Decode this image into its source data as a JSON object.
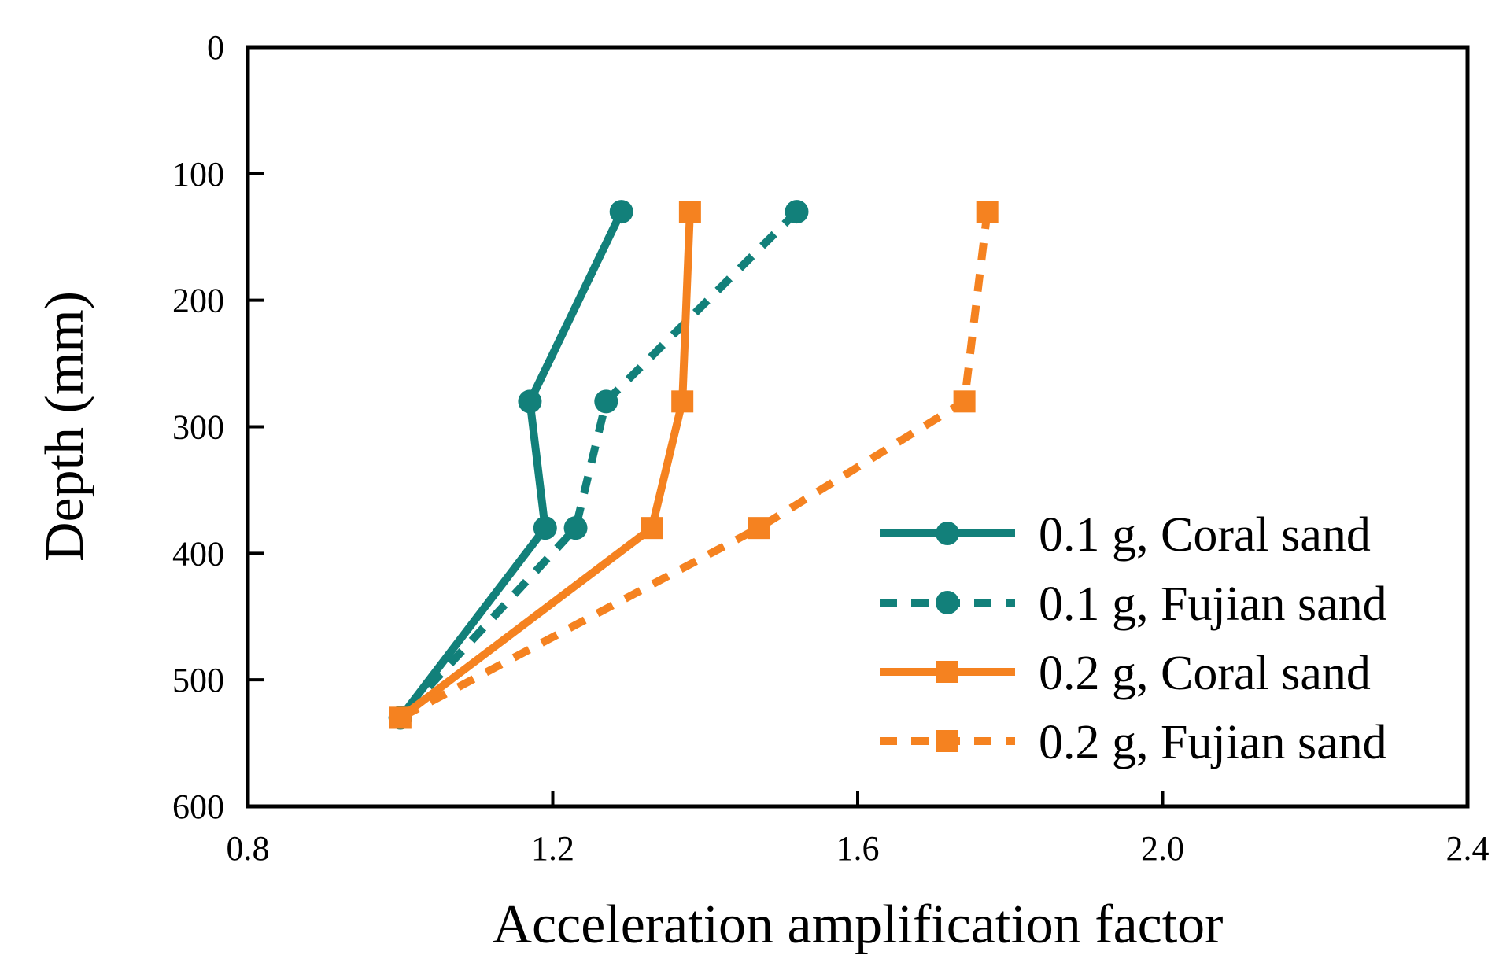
{
  "chart_data": {
    "type": "line",
    "title": "",
    "xlabel": "Acceleration amplification factor",
    "ylabel": "Depth (mm)",
    "xlim": [
      0.8,
      2.4
    ],
    "ylim": [
      0,
      600
    ],
    "y_inverted": true,
    "x_ticks": [
      "0.8",
      "1.2",
      "1.6",
      "2.0",
      "2.4"
    ],
    "y_ticks": [
      "0",
      "100",
      "200",
      "300",
      "400",
      "500",
      "600"
    ],
    "legend_position": "bottom-right",
    "series": [
      {
        "name": "0.1 g, Coral sand",
        "color": "#12807A",
        "line_style": "solid",
        "marker": "circle",
        "x": [
          1.29,
          1.17,
          1.19,
          1.0
        ],
        "y": [
          130,
          280,
          380,
          530
        ]
      },
      {
        "name": "0.1 g, Fujian sand",
        "color": "#12807A",
        "line_style": "dashed",
        "marker": "circle",
        "x": [
          1.52,
          1.27,
          1.23,
          1.0
        ],
        "y": [
          130,
          280,
          380,
          530
        ]
      },
      {
        "name": "0.2 g, Coral sand",
        "color": "#F58220",
        "line_style": "solid",
        "marker": "square",
        "x": [
          1.38,
          1.37,
          1.33,
          1.0
        ],
        "y": [
          130,
          280,
          380,
          530
        ]
      },
      {
        "name": "0.2 g, Fujian sand",
        "color": "#F58220",
        "line_style": "dashed",
        "marker": "square",
        "x": [
          1.77,
          1.74,
          1.47,
          1.0
        ],
        "y": [
          130,
          280,
          380,
          530
        ]
      }
    ]
  }
}
